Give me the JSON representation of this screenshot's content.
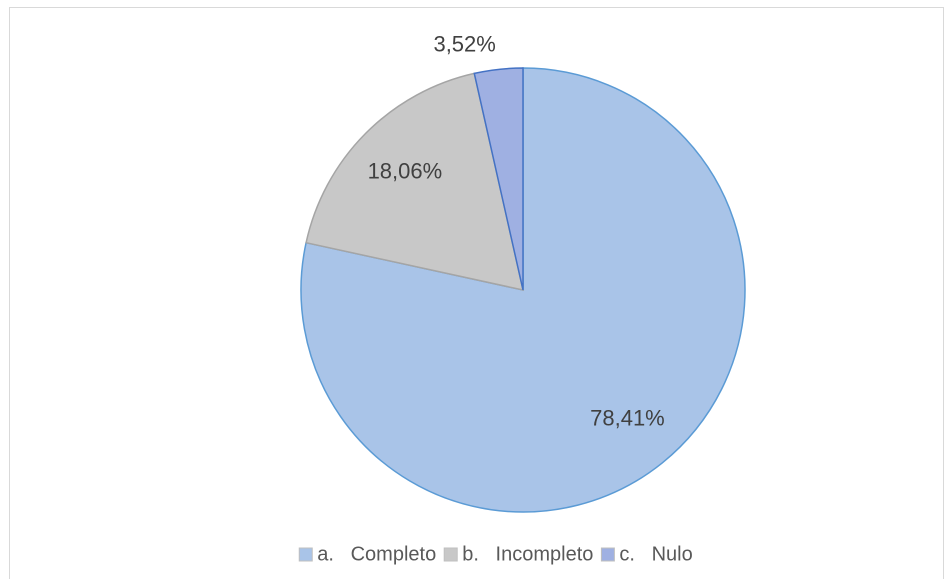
{
  "chart_data": {
    "type": "pie",
    "categories": [
      "a.   Completo",
      "b.   Incompleto",
      "c.   Nulo"
    ],
    "values": [
      78.41,
      18.06,
      3.52
    ],
    "value_labels": [
      "78,41%",
      "18,06%",
      "3,52%"
    ],
    "colors": [
      "#a9c4e8",
      "#c8c8c8",
      "#9fb0e2"
    ],
    "legend": "bottom"
  }
}
